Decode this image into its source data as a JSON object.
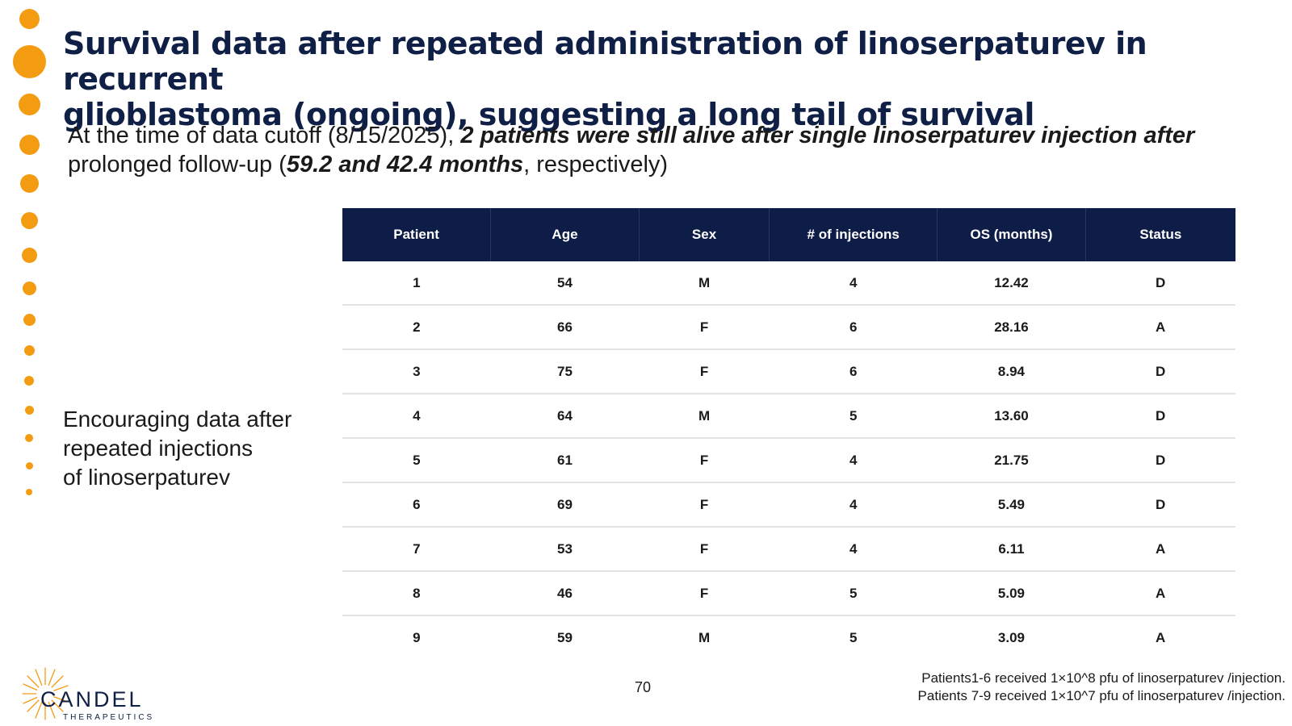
{
  "slide": {
    "title_line1": "Survival data after repeated administration of linoserpaturev in recurrent",
    "title_line2": "glioblastoma (ongoing), suggesting a long tail of survival",
    "subtitle": {
      "part1": "At the time of data cutoff (8/15/2025), ",
      "part2_bold_italic": "2 patients were still alive after single linoserpaturev injection after",
      "part3": " prolonged follow-up (",
      "part4_bold_italic": "59.2 and 42.4 months",
      "part5": ", respectively)"
    },
    "side_note": {
      "line1": "Encouraging data after",
      "line2": "repeated injections",
      "line3": "of linoserpaturev"
    },
    "page_number": "70",
    "footnote_line1": "Patients1-6 received 1×10^8 pfu of linoserpaturev /injection.",
    "footnote_line2": "Patients 7-9 received 1×10^7 pfu of linoserpaturev /injection.",
    "logo": {
      "name": "CANDEL",
      "sub": "THERAPEUTICS"
    },
    "colors": {
      "title": "#0F1F45",
      "accent_orange": "#F39C12",
      "table_header": "#0E1D47"
    }
  },
  "table": {
    "headers": [
      "Patient",
      "Age",
      "Sex",
      "# of injections",
      "OS (months)",
      "Status"
    ],
    "rows": [
      [
        "1",
        "54",
        "M",
        "4",
        "12.42",
        "D"
      ],
      [
        "2",
        "66",
        "F",
        "6",
        "28.16",
        "A"
      ],
      [
        "3",
        "75",
        "F",
        "6",
        "8.94",
        "D"
      ],
      [
        "4",
        "64",
        "M",
        "5",
        "13.60",
        "D"
      ],
      [
        "5",
        "61",
        "F",
        "4",
        "21.75",
        "D"
      ],
      [
        "6",
        "69",
        "F",
        "4",
        "5.49",
        "D"
      ],
      [
        "7",
        "53",
        "F",
        "4",
        "6.11",
        "A"
      ],
      [
        "8",
        "46",
        "F",
        "5",
        "5.09",
        "A"
      ],
      [
        "9",
        "59",
        "M",
        "5",
        "3.09",
        "A"
      ]
    ]
  }
}
